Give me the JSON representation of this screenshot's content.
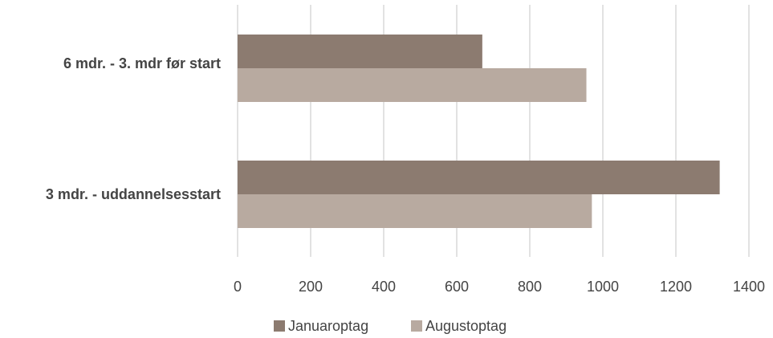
{
  "chart_data": {
    "type": "bar",
    "orientation": "horizontal",
    "categories": [
      "6 mdr. - 3. mdr før start",
      "3 mdr. - uddannelsesstart"
    ],
    "series": [
      {
        "name": "Januaroptag",
        "color": "#8c7b70",
        "values": [
          670,
          1320
        ]
      },
      {
        "name": "Augustoptag",
        "color": "#b8aaa0",
        "values": [
          955,
          970
        ]
      }
    ],
    "xlim": [
      0,
      1400
    ],
    "ticks": [
      0,
      200,
      400,
      600,
      800,
      1000,
      1200,
      1400
    ],
    "grid": true,
    "legend_position": "bottom"
  }
}
